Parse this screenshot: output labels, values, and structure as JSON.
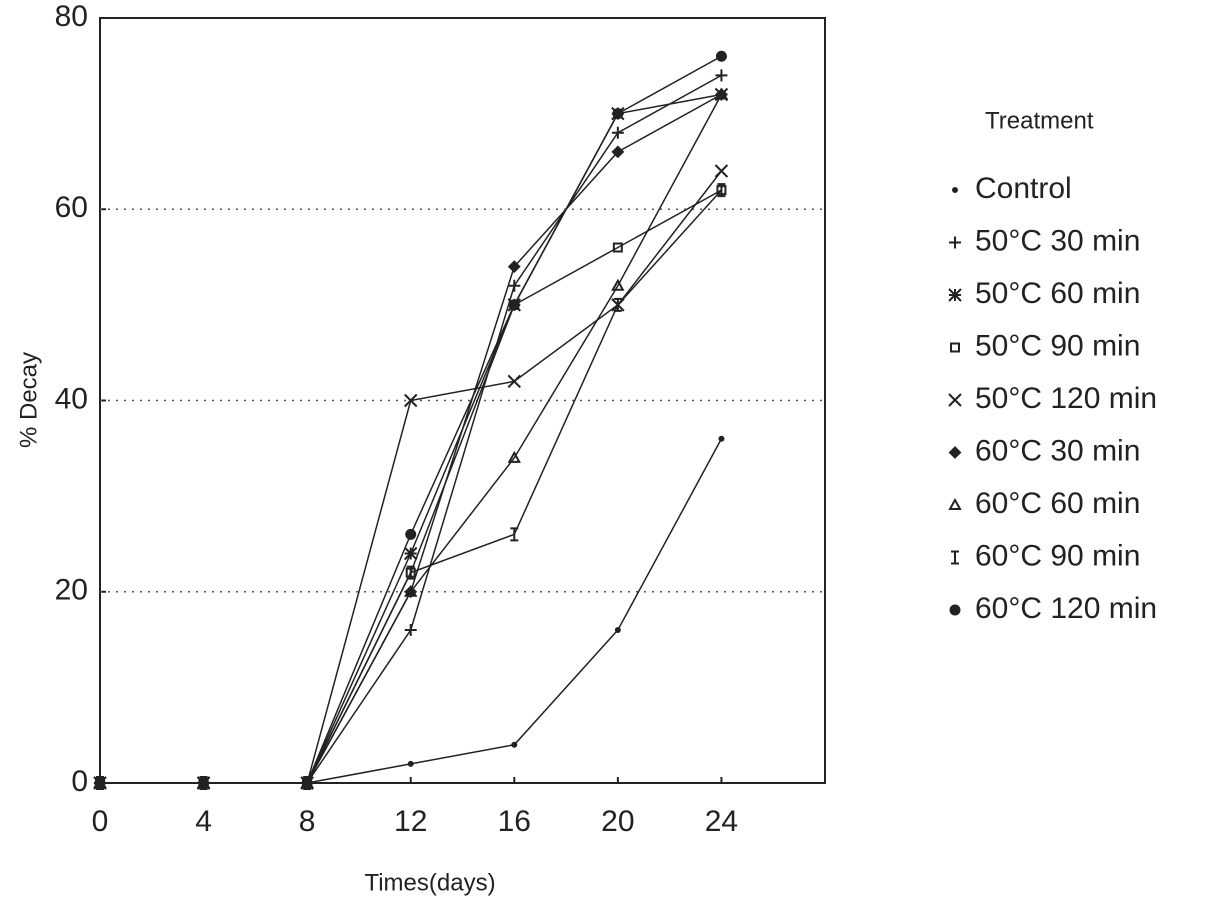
{
  "chart_data": {
    "type": "line",
    "x_label": "Times(days)",
    "y_label": "% Decay",
    "x": [
      0,
      4,
      8,
      12,
      16,
      20,
      24
    ],
    "xlim": [
      0,
      28
    ],
    "xticks": [
      0,
      4,
      8,
      12,
      16,
      20,
      24
    ],
    "ylim": [
      0,
      80
    ],
    "yticks": [
      0,
      20,
      40,
      60,
      80
    ],
    "grid": true,
    "legend_title": "Treatment",
    "legend_position": "right",
    "series": [
      {
        "name": "Control",
        "color": "#222222",
        "marker": "dot",
        "values": [
          0,
          0,
          0,
          2,
          4,
          16,
          36
        ]
      },
      {
        "name": "50°C 30 min",
        "color": "#222222",
        "marker": "plus",
        "values": [
          0,
          0,
          0,
          16,
          52,
          68,
          74
        ]
      },
      {
        "name": "50°C 60 min",
        "color": "#222222",
        "marker": "star",
        "values": [
          0,
          0,
          0,
          24,
          50,
          70,
          72
        ]
      },
      {
        "name": "50°C 90 min",
        "color": "#222222",
        "marker": "square",
        "values": [
          0,
          0,
          0,
          22,
          50,
          56,
          62
        ]
      },
      {
        "name": "50°C 120 min",
        "color": "#222222",
        "marker": "cross",
        "values": [
          0,
          0,
          0,
          40,
          42,
          50,
          64
        ]
      },
      {
        "name": "60°C 30 min",
        "color": "#222222",
        "marker": "diamond",
        "values": [
          0,
          0,
          0,
          20,
          54,
          66,
          72
        ]
      },
      {
        "name": "60°C 60 min",
        "color": "#222222",
        "marker": "triangle",
        "values": [
          0,
          0,
          0,
          20,
          34,
          52,
          72
        ]
      },
      {
        "name": "60°C 90 min",
        "color": "#222222",
        "marker": "ibeam",
        "values": [
          0,
          0,
          0,
          22,
          26,
          50,
          62
        ]
      },
      {
        "name": "60°C 120 min",
        "color": "#222222",
        "marker": "circle",
        "values": [
          0,
          0,
          0,
          26,
          50,
          70,
          76
        ]
      }
    ]
  }
}
